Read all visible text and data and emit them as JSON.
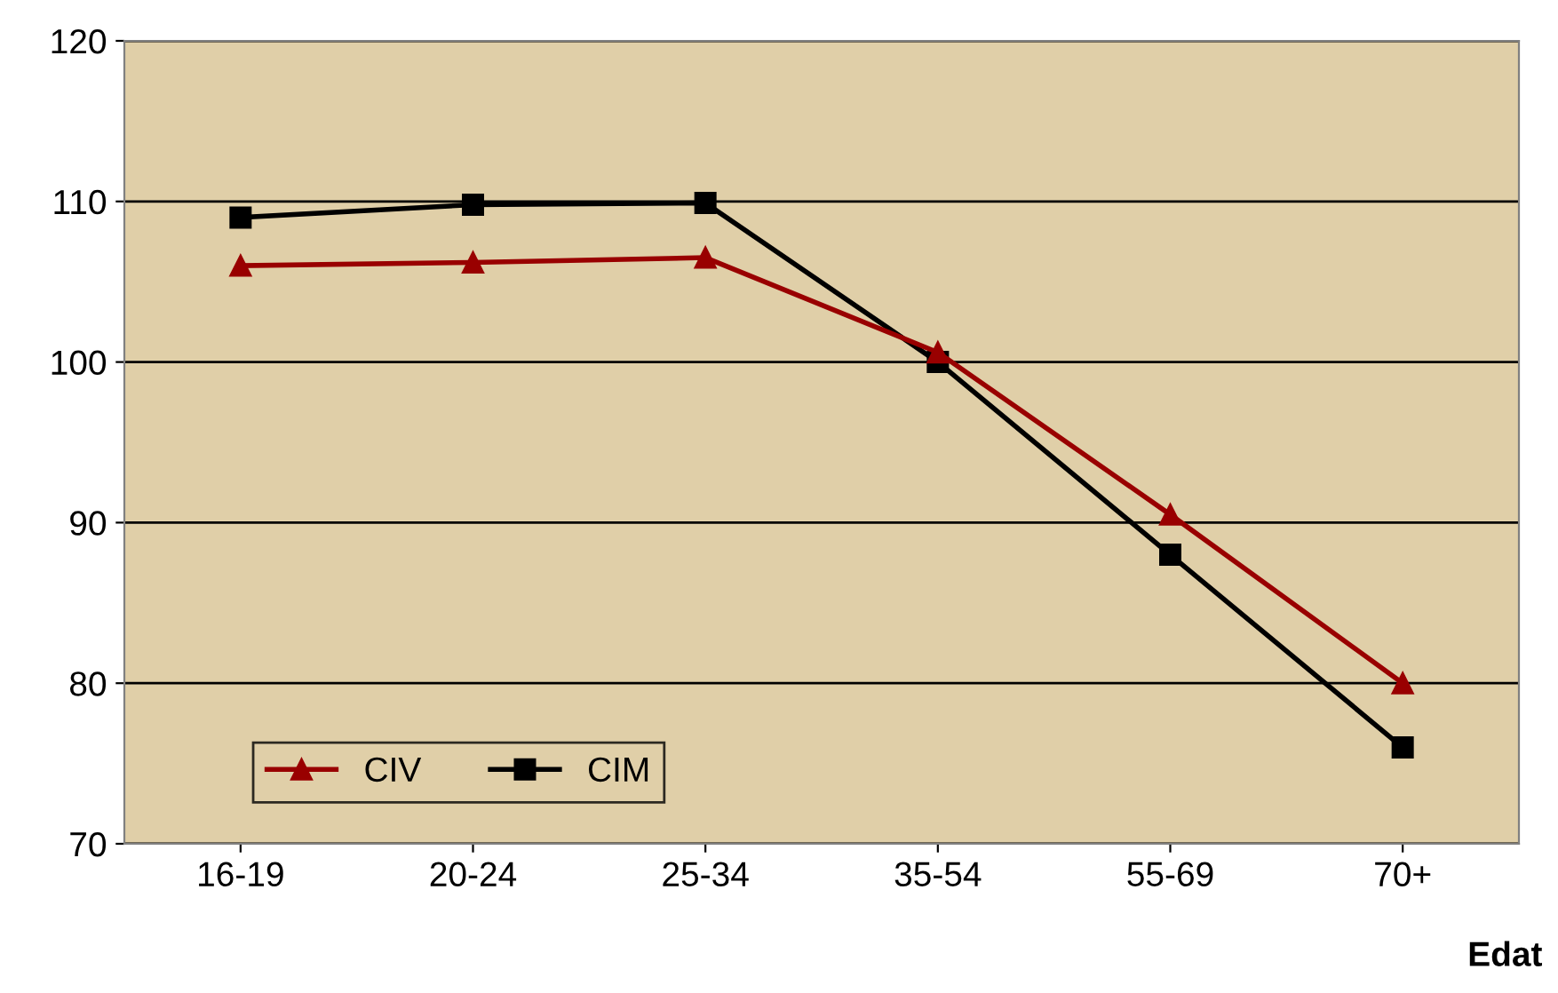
{
  "chart_data": {
    "type": "line",
    "xlabel": "Edat",
    "categories": [
      "16-19",
      "20-24",
      "25-34",
      "35-54",
      "55-69",
      "70+"
    ],
    "series": [
      {
        "name": "CIV",
        "color": "#990000",
        "marker": "triangle",
        "values": [
          106.0,
          106.2,
          106.5,
          100.6,
          90.5,
          80.0
        ]
      },
      {
        "name": "CIM",
        "color": "#000000",
        "marker": "square",
        "values": [
          109.0,
          109.8,
          109.9,
          100.0,
          88.0,
          76.0
        ]
      }
    ],
    "ylim": [
      70,
      120
    ],
    "yticks": [
      70,
      80,
      90,
      100,
      110,
      120
    ],
    "grid": "y",
    "legend": "bottom left"
  }
}
